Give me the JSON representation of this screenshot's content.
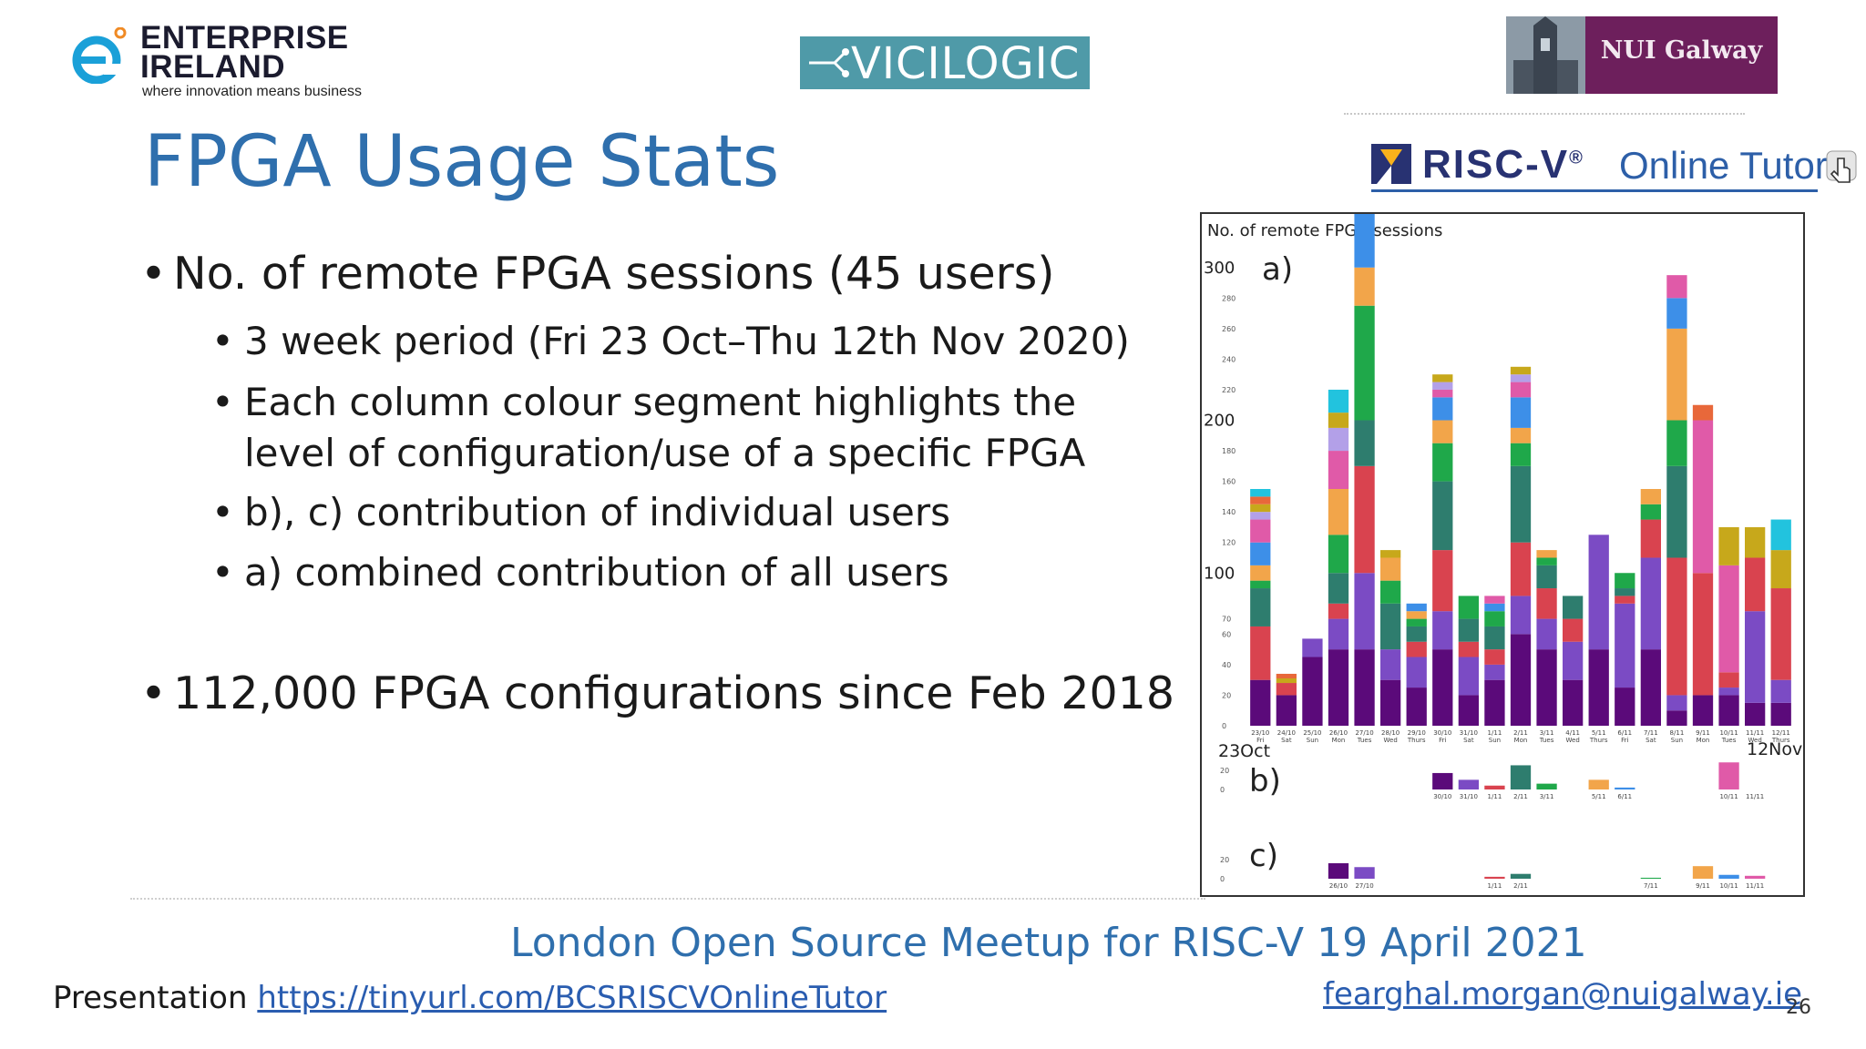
{
  "logos": {
    "enterprise_ireland": {
      "line1": "ENTERPRISE",
      "line2": "IRELAND",
      "tagline": "where innovation means business"
    },
    "vicilogic": {
      "text": "VICILOGIC"
    },
    "nui_galway": {
      "text": "NUI Galway"
    },
    "riscv": {
      "word": "RISC-V",
      "reg": "®",
      "tutor": "Online Tutor"
    }
  },
  "title": "FPGA Usage Stats",
  "bullets": [
    {
      "level": 1,
      "text": "No. of remote FPGA sessions (45 users)"
    },
    {
      "level": 2,
      "text": "3 week period (Fri 23 Oct–Thu 12th Nov 2020)"
    },
    {
      "level": 2,
      "text": "Each column colour segment highlights the"
    },
    {
      "level": 2,
      "text": "level of configuration/use of a specific FPGA",
      "continuation": true
    },
    {
      "level": 2,
      "text": "b), c) contribution of individual users"
    },
    {
      "level": 2,
      "text": "a) combined contribution of all users"
    },
    {
      "level": 1,
      "text": "112,000 FPGA configurations since Feb 2018"
    }
  ],
  "chart_data": {
    "type": "bar",
    "stacked": true,
    "ylabel": "No. of remote FPGA sessions",
    "panel_labels": [
      "a)",
      "b)",
      "c)"
    ],
    "start_label": "23Oct",
    "end_label": "12Nov",
    "y_ticks_major": [
      100,
      200,
      300
    ],
    "y_ticks_minor": [
      0,
      20,
      40,
      60,
      70,
      120,
      140,
      160,
      180,
      220,
      240,
      260,
      280
    ],
    "categories": [
      "23/10",
      "24/10",
      "25/10",
      "26/10",
      "27/10",
      "28/10",
      "29/10",
      "30/10",
      "31/10",
      "1/11",
      "2/11",
      "3/11",
      "4/11",
      "5/11",
      "6/11",
      "7/11",
      "8/11",
      "9/11",
      "10/11",
      "11/11",
      "12/11"
    ],
    "weekdays": [
      "Fri",
      "Sat",
      "Sun",
      "Mon",
      "Tues",
      "Wed",
      "Thurs",
      "Fri",
      "Sat",
      "Sun",
      "Mon",
      "Tues",
      "Wed",
      "Thurs",
      "Fri",
      "Sat",
      "Sun",
      "Mon",
      "Tues",
      "Wed",
      "Thurs"
    ],
    "colors": [
      "#5b0a7a",
      "#7b4bc4",
      "#d9434f",
      "#2e7d6e",
      "#1fa84a",
      "#f2a54a",
      "#3d8fe8",
      "#e05aa8",
      "#b3a0e8",
      "#c7a81b",
      "#e8683a",
      "#22c3de",
      "#c455c9"
    ],
    "series_values": [
      [
        30,
        0,
        35,
        25,
        5,
        10,
        15,
        15,
        5,
        5,
        5,
        5
      ],
      [
        20,
        0,
        8,
        0,
        0,
        0,
        0,
        0,
        0,
        3,
        3,
        0
      ],
      [
        45,
        12,
        0,
        0,
        0,
        0,
        0,
        0,
        0,
        0,
        0,
        0
      ],
      [
        50,
        20,
        10,
        20,
        25,
        30,
        0,
        25,
        15,
        10,
        0,
        15
      ],
      [
        50,
        50,
        70,
        30,
        75,
        25,
        70,
        0,
        0,
        5,
        5,
        5
      ],
      [
        30,
        20,
        0,
        30,
        15,
        15,
        0,
        0,
        0,
        5,
        0,
        0
      ],
      [
        25,
        20,
        10,
        10,
        5,
        5,
        5,
        0,
        0,
        0,
        0,
        0
      ],
      [
        50,
        25,
        40,
        45,
        25,
        15,
        15,
        5,
        5,
        5,
        0,
        0
      ],
      [
        20,
        25,
        10,
        15,
        15,
        0,
        0,
        0,
        0,
        0,
        0,
        0
      ],
      [
        30,
        10,
        10,
        15,
        10,
        0,
        5,
        5,
        0,
        0,
        0,
        0
      ],
      [
        60,
        25,
        35,
        50,
        15,
        10,
        20,
        10,
        5,
        5,
        0,
        0
      ],
      [
        50,
        20,
        20,
        15,
        5,
        5,
        0,
        0,
        0,
        0,
        0,
        0
      ],
      [
        30,
        25,
        15,
        15,
        0,
        0,
        0,
        0,
        0,
        0,
        0,
        0
      ],
      [
        50,
        75,
        0,
        0,
        0,
        0,
        0,
        0,
        0,
        0,
        0,
        0
      ],
      [
        25,
        55,
        5,
        5,
        10,
        0,
        0,
        0,
        0,
        0,
        0,
        0
      ],
      [
        50,
        60,
        25,
        0,
        10,
        10,
        0,
        0,
        0,
        0,
        0,
        0
      ],
      [
        10,
        10,
        90,
        60,
        30,
        60,
        20,
        15,
        0,
        0,
        0,
        0
      ],
      [
        20,
        0,
        80,
        0,
        0,
        0,
        0,
        100,
        0,
        0,
        10,
        0
      ],
      [
        20,
        5,
        10,
        0,
        0,
        0,
        0,
        70,
        0,
        25,
        0,
        0
      ],
      [
        15,
        60,
        35,
        0,
        0,
        0,
        0,
        0,
        0,
        20,
        0,
        0
      ],
      [
        15,
        15,
        60,
        0,
        0,
        0,
        0,
        0,
        0,
        25,
        0,
        20
      ]
    ],
    "panel_b": {
      "y_ticks": [
        0,
        20
      ],
      "categories": [
        "30/10",
        "31/10",
        "1/11",
        "2/11",
        "3/11",
        "5/11",
        "6/11",
        "10/11",
        "11/11"
      ],
      "values": [
        17,
        10,
        4,
        25,
        6,
        10,
        2,
        28,
        0
      ]
    },
    "panel_c": {
      "y_ticks": [
        0,
        20
      ],
      "categories": [
        "26/10",
        "27/10",
        "1/11",
        "2/11",
        "7/11",
        "9/11",
        "10/11",
        "11/11"
      ],
      "values": [
        16,
        12,
        2,
        5,
        1,
        13,
        4,
        3
      ]
    }
  },
  "footer": {
    "event": "London Open Source Meetup for RISC-V 19 April 2021",
    "presentation_label": "Presentation ",
    "presentation_link": "https://tinyurl.com/BCSRISCVOnlineTutor",
    "email": "fearghal.morgan@nuigalway.ie",
    "page_number": "26"
  }
}
